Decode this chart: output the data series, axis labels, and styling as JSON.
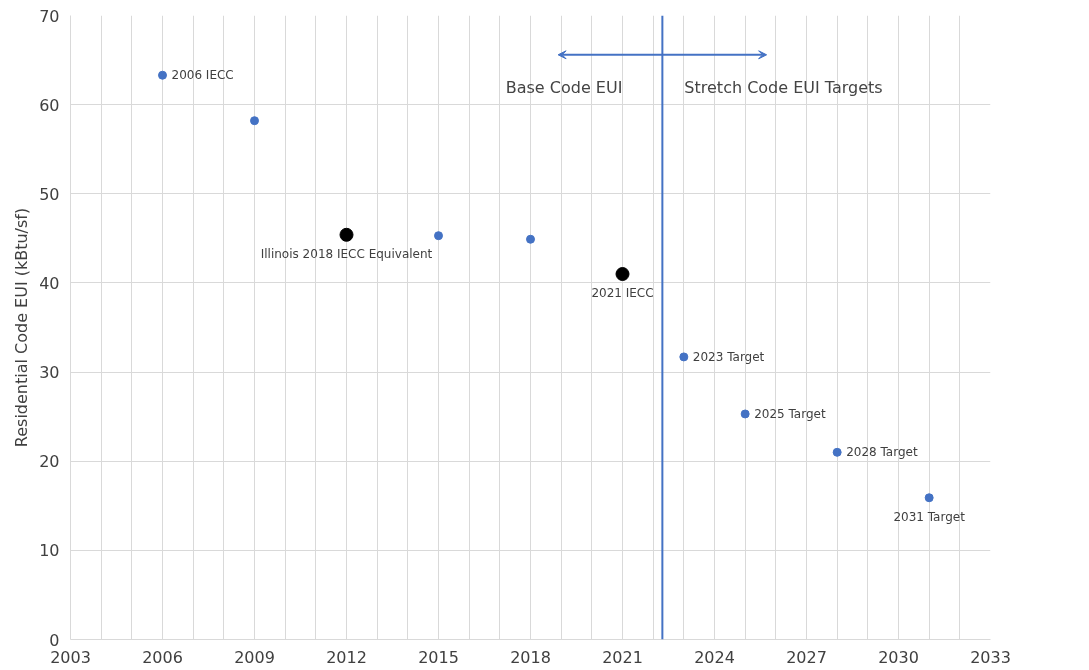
{
  "chart_data": {
    "type": "scatter",
    "ylabel": "Residential Code EUI (kBtu/sf)",
    "series": [
      {
        "color": "#4472c4",
        "x": [
          2006,
          2009,
          2015,
          2018,
          2023,
          2025,
          2028,
          2031
        ],
        "values": [
          63.3,
          58.2,
          45.3,
          44.9,
          31.7,
          25.3,
          21.0,
          15.9
        ]
      },
      {
        "color": "#000000",
        "x": [
          2012,
          2021
        ],
        "values": [
          45.4,
          41.0
        ]
      }
    ],
    "marker": "circle",
    "xlim": [
      2003,
      2033
    ],
    "xticks": [
      2003,
      {
        "value": 2004,
        "label": null
      },
      {
        "value": 2005,
        "label": null
      },
      2006,
      {
        "value": 2007,
        "label": null
      },
      {
        "value": 2008,
        "label": null
      },
      2009,
      {
        "value": 2010,
        "label": null
      },
      {
        "value": 2011,
        "label": null
      },
      2012,
      {
        "value": 2013,
        "label": null
      },
      {
        "value": 2014,
        "label": null
      },
      2015,
      {
        "value": 2016,
        "label": null
      },
      {
        "value": 2017,
        "label": null
      },
      2018,
      {
        "value": 2019,
        "label": null
      },
      {
        "value": 2020,
        "label": null
      },
      2021,
      {
        "value": 2022,
        "label": null
      },
      {
        "value": 2023,
        "label": null
      },
      2024,
      {
        "value": 2025,
        "label": null
      },
      {
        "value": 2026,
        "label": null
      },
      2027,
      {
        "value": 2028,
        "label": null
      },
      {
        "value": 2029,
        "label": null
      },
      2030,
      {
        "value": 2031,
        "label": null
      },
      {
        "value": 2032,
        "label": null
      },
      2033
    ],
    "ylim": [
      0,
      70
    ],
    "yticks": [
      0,
      10,
      20,
      30,
      40,
      50,
      60,
      70
    ],
    "grid": true,
    "ref_lines": [
      {
        "axis": "x",
        "value": 2022.3,
        "color": "#4472c4"
      }
    ],
    "annotations": [
      {
        "text": "2006 IECC",
        "x": 2006,
        "y": 63.3
      },
      {
        "text": "Illinois 2018 IECC Equivalent",
        "x": 2012,
        "y": 45.4
      },
      {
        "text": "2021 IECC",
        "x": 2021,
        "y": 41.0
      },
      {
        "text": "2023 Target",
        "x": 2023,
        "y": 31.7
      },
      {
        "text": "2025 Target",
        "x": 2025,
        "y": 25.3
      },
      {
        "text": "2028 Target",
        "x": 2028,
        "y": 21.0
      },
      {
        "text": "2031 Target",
        "x": 2031,
        "y": 15.9
      },
      "Base Code EUI",
      "Stretch Code EUI Targets"
    ]
  }
}
